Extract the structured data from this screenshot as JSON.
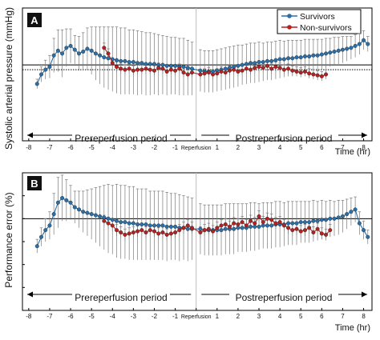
{
  "colors": {
    "survivors": "#2a6fa8",
    "non_survivors": "#b22222",
    "error_bar": "#7a7a7a",
    "panel_label_bg": "#111111"
  },
  "chart_data": [
    {
      "panel": "A",
      "type": "line",
      "ylabel": "Systolic arterial pressure (mmHg)",
      "xlabel": "Time (hr)",
      "x_tick_labels": [
        "-8",
        "-7",
        "-6",
        "-5",
        "-4",
        "-3",
        "-2",
        "-1",
        "Reperfusion",
        "1",
        "2",
        "3",
        "4",
        "5",
        "6",
        "7",
        "8"
      ],
      "ylim": [
        20,
        160
      ],
      "xlim": [
        -8.3,
        8.4
      ],
      "legend": {
        "placement": "top-right",
        "entries": [
          "Survivors",
          "Non-survivors"
        ]
      },
      "reference_lines": {
        "solid": 100,
        "dotted": 95
      },
      "annotations": {
        "left_period": "Prereperfusion period",
        "right_period": "Postreperfusion period"
      },
      "series": [
        {
          "name": "Survivors",
          "x": [
            -7.6,
            -7.4,
            -7.2,
            -7.0,
            -6.8,
            -6.6,
            -6.4,
            -6.2,
            -6.0,
            -5.8,
            -5.6,
            -5.4,
            -5.2,
            -5.0,
            -4.8,
            -4.6,
            -4.4,
            -4.2,
            -4.0,
            -3.8,
            -3.6,
            -3.4,
            -3.2,
            -3.0,
            -2.8,
            -2.6,
            -2.4,
            -2.2,
            -2.0,
            -1.8,
            -1.6,
            -1.4,
            -1.2,
            -1.0,
            -0.8,
            -0.6,
            -0.4,
            -0.2,
            0.2,
            0.4,
            0.6,
            0.8,
            1.0,
            1.2,
            1.4,
            1.6,
            1.8,
            2.0,
            2.2,
            2.4,
            2.6,
            2.8,
            3.0,
            3.2,
            3.4,
            3.6,
            3.8,
            4.0,
            4.2,
            4.4,
            4.6,
            4.8,
            5.0,
            5.2,
            5.4,
            5.6,
            5.8,
            6.0,
            6.2,
            6.4,
            6.6,
            6.8,
            7.0,
            7.2,
            7.4,
            7.6,
            7.8,
            8.0,
            8.2
          ],
          "y": [
            80,
            90,
            95,
            98,
            110,
            115,
            112,
            118,
            120,
            116,
            112,
            114,
            117,
            115,
            112,
            110,
            108,
            107,
            106,
            105,
            104,
            104,
            103,
            103,
            102,
            102,
            101,
            101,
            101,
            100,
            100,
            99,
            99,
            99,
            98,
            98,
            97,
            96,
            94,
            93,
            93,
            93,
            94,
            95,
            96,
            97,
            98,
            99,
            100,
            101,
            102,
            102,
            103,
            103,
            104,
            104,
            105,
            106,
            106,
            107,
            107,
            108,
            108,
            109,
            109,
            110,
            110,
            111,
            112,
            113,
            114,
            115,
            116,
            117,
            118,
            120,
            122,
            126,
            122
          ],
          "err": [
            5,
            8,
            10,
            12,
            18,
            22,
            25,
            20,
            18,
            15,
            18,
            20,
            22,
            25,
            28,
            30,
            32,
            33,
            34,
            35,
            35,
            35,
            34,
            34,
            34,
            33,
            33,
            33,
            32,
            32,
            31,
            31,
            30,
            30,
            30,
            30,
            29,
            28,
            22,
            22,
            22,
            22,
            22,
            22,
            22,
            22,
            22,
            22,
            21,
            21,
            21,
            21,
            21,
            20,
            20,
            20,
            20,
            20,
            19,
            19,
            19,
            18,
            18,
            18,
            18,
            17,
            17,
            16,
            16,
            15,
            15,
            14,
            14,
            13,
            12,
            12,
            11,
            10,
            8
          ]
        },
        {
          "name": "Non-survivors",
          "x": [
            -4.4,
            -4.2,
            -4.0,
            -3.8,
            -3.6,
            -3.4,
            -3.2,
            -3.0,
            -2.8,
            -2.6,
            -2.4,
            -2.2,
            -2.0,
            -1.8,
            -1.6,
            -1.4,
            -1.2,
            -1.0,
            -0.8,
            -0.6,
            -0.4,
            -0.2,
            0.2,
            0.4,
            0.6,
            0.8,
            1.0,
            1.2,
            1.4,
            1.6,
            1.8,
            2.0,
            2.2,
            2.4,
            2.6,
            2.8,
            3.0,
            3.2,
            3.4,
            3.6,
            3.8,
            4.0,
            4.2,
            4.4,
            4.6,
            4.8,
            5.0,
            5.2,
            5.4,
            5.6,
            5.8,
            6.0,
            6.2
          ],
          "y": [
            118,
            112,
            102,
            98,
            96,
            95,
            96,
            94,
            95,
            95,
            96,
            95,
            94,
            97,
            96,
            93,
            95,
            94,
            96,
            92,
            90,
            92,
            90,
            91,
            92,
            90,
            91,
            93,
            92,
            94,
            95,
            93,
            94,
            96,
            95,
            97,
            98,
            97,
            99,
            96,
            98,
            97,
            95,
            96,
            94,
            93,
            92,
            93,
            91,
            90,
            89,
            88,
            90
          ],
          "err": [
            5,
            5,
            5,
            5,
            5,
            5,
            5,
            5,
            5,
            5,
            5,
            5,
            5,
            5,
            5,
            5,
            5,
            5,
            5,
            5,
            5,
            5,
            5,
            5,
            5,
            5,
            5,
            5,
            5,
            5,
            5,
            5,
            5,
            5,
            5,
            5,
            5,
            5,
            5,
            5,
            5,
            5,
            5,
            5,
            5,
            5,
            5,
            5,
            5,
            5,
            5,
            5,
            5
          ]
        }
      ]
    },
    {
      "panel": "B",
      "type": "line",
      "ylabel": "Performance error (%)",
      "xlabel": "Time (hr)",
      "x_tick_labels": [
        "-8",
        "-7",
        "-6",
        "-5",
        "-4",
        "-3",
        "-2",
        "-1",
        "Reperfusion",
        "1",
        "2",
        "3",
        "4",
        "5",
        "6",
        "7",
        "8"
      ],
      "ylim": [
        -80,
        40
      ],
      "xlim": [
        -8.3,
        8.4
      ],
      "y_ticks": [
        40,
        20,
        0,
        -20,
        -40,
        -60,
        -80
      ],
      "reference_lines": {
        "solid": 0
      },
      "annotations": {
        "left_period": "Prereperfusion period",
        "right_period": "Postreperfusion period"
      },
      "series": [
        {
          "name": "Survivors",
          "x": [
            -7.6,
            -7.4,
            -7.2,
            -7.0,
            -6.8,
            -6.6,
            -6.4,
            -6.2,
            -6.0,
            -5.8,
            -5.6,
            -5.4,
            -5.2,
            -5.0,
            -4.8,
            -4.6,
            -4.4,
            -4.2,
            -4.0,
            -3.8,
            -3.6,
            -3.4,
            -3.2,
            -3.0,
            -2.8,
            -2.6,
            -2.4,
            -2.2,
            -2.0,
            -1.8,
            -1.6,
            -1.4,
            -1.2,
            -1.0,
            -0.8,
            -0.6,
            -0.4,
            -0.2,
            0.2,
            0.4,
            0.6,
            0.8,
            1.0,
            1.2,
            1.4,
            1.6,
            1.8,
            2.0,
            2.2,
            2.4,
            2.6,
            2.8,
            3.0,
            3.2,
            3.4,
            3.6,
            3.8,
            4.0,
            4.2,
            4.4,
            4.6,
            4.8,
            5.0,
            5.2,
            5.4,
            5.6,
            5.8,
            6.0,
            6.2,
            6.4,
            6.6,
            6.8,
            7.0,
            7.2,
            7.4,
            7.6,
            7.8,
            8.0,
            8.2
          ],
          "y": [
            -24,
            -16,
            -10,
            -6,
            4,
            14,
            18,
            16,
            14,
            10,
            8,
            6,
            5,
            4,
            3,
            2,
            1,
            0,
            -1,
            -2,
            -3,
            -3,
            -4,
            -4,
            -5,
            -5,
            -5,
            -6,
            -6,
            -6,
            -6,
            -7,
            -7,
            -7,
            -8,
            -8,
            -9,
            -9,
            -9,
            -10,
            -10,
            -10,
            -10,
            -10,
            -9,
            -9,
            -9,
            -8,
            -8,
            -8,
            -7,
            -7,
            -7,
            -6,
            -6,
            -6,
            -5,
            -5,
            -5,
            -4,
            -4,
            -4,
            -3,
            -3,
            -3,
            -2,
            -2,
            -1,
            -1,
            0,
            0,
            1,
            2,
            4,
            6,
            8,
            -4,
            -10,
            -16
          ],
          "err": [
            6,
            8,
            10,
            12,
            18,
            22,
            20,
            18,
            15,
            14,
            16,
            18,
            20,
            22,
            24,
            26,
            28,
            30,
            30,
            32,
            32,
            32,
            32,
            32,
            31,
            31,
            31,
            30,
            30,
            30,
            30,
            30,
            29,
            29,
            29,
            28,
            28,
            27,
            22,
            22,
            22,
            22,
            22,
            22,
            22,
            22,
            22,
            21,
            21,
            21,
            21,
            21,
            20,
            20,
            20,
            20,
            20,
            20,
            19,
            19,
            19,
            19,
            18,
            18,
            18,
            18,
            17,
            17,
            16,
            16,
            15,
            15,
            14,
            13,
            12,
            11,
            10,
            8,
            6
          ]
        },
        {
          "name": "Non-survivors",
          "x": [
            -4.4,
            -4.2,
            -4.0,
            -3.8,
            -3.6,
            -3.4,
            -3.2,
            -3.0,
            -2.8,
            -2.6,
            -2.4,
            -2.2,
            -2.0,
            -1.8,
            -1.6,
            -1.4,
            -1.2,
            -1.0,
            -0.8,
            -0.6,
            -0.4,
            -0.2,
            0.2,
            0.4,
            0.6,
            0.8,
            1.0,
            1.2,
            1.4,
            1.6,
            1.8,
            2.0,
            2.2,
            2.4,
            2.6,
            2.8,
            3.0,
            3.2,
            3.4,
            3.6,
            3.8,
            4.0,
            4.2,
            4.4,
            4.6,
            4.8,
            5.0,
            5.2,
            5.4,
            5.6,
            5.8,
            6.0,
            6.2,
            6.4
          ],
          "y": [
            -2,
            -4,
            -6,
            -10,
            -12,
            -14,
            -13,
            -12,
            -11,
            -10,
            -12,
            -10,
            -11,
            -13,
            -12,
            -14,
            -13,
            -12,
            -10,
            -8,
            -6,
            -8,
            -12,
            -10,
            -9,
            -11,
            -8,
            -6,
            -5,
            -7,
            -4,
            -5,
            -3,
            -6,
            -2,
            -4,
            2,
            -3,
            0,
            -1,
            -4,
            -3,
            -6,
            -8,
            -10,
            -9,
            -11,
            -10,
            -8,
            -12,
            -9,
            -13,
            -14,
            -10
          ],
          "err": [
            5,
            5,
            5,
            5,
            5,
            5,
            5,
            5,
            5,
            5,
            5,
            5,
            5,
            5,
            5,
            5,
            5,
            5,
            5,
            5,
            5,
            5,
            5,
            5,
            5,
            5,
            5,
            5,
            5,
            5,
            5,
            5,
            5,
            5,
            5,
            5,
            5,
            5,
            5,
            5,
            5,
            5,
            5,
            5,
            5,
            5,
            5,
            5,
            5,
            5,
            5,
            5,
            5,
            5
          ]
        }
      ]
    }
  ]
}
